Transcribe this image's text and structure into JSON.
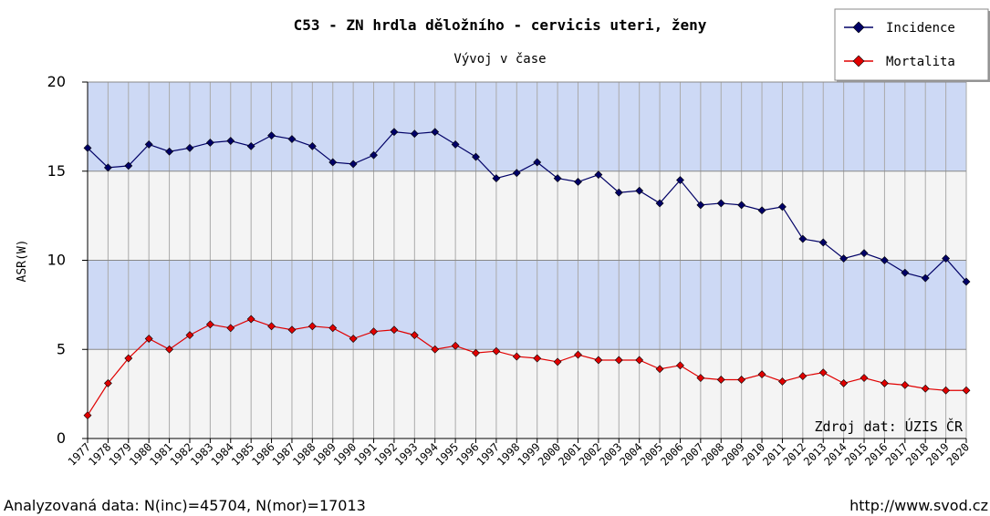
{
  "chart_data": {
    "type": "line",
    "title": "C53 - ZN hrdla děložního - cervicis uteri, ženy",
    "subtitle": "Vývoj v čase",
    "y_label": "ASR(W)",
    "source_note": "Zdroj dat: ÚZIS ČR",
    "footer_left": "Analyzovaná data: N(inc)=45704, N(mor)=17013",
    "footer_right": "http://www.svod.cz",
    "x": [
      1977,
      1978,
      1979,
      1980,
      1981,
      1982,
      1983,
      1984,
      1985,
      1986,
      1987,
      1988,
      1989,
      1990,
      1991,
      1992,
      1993,
      1994,
      1995,
      1996,
      1997,
      1998,
      1999,
      2000,
      2001,
      2002,
      2003,
      2004,
      2005,
      2006,
      2007,
      2008,
      2009,
      2010,
      2011,
      2012,
      2013,
      2014,
      2015,
      2016,
      2017,
      2018,
      2019,
      2020
    ],
    "xlim": [
      1977,
      2020
    ],
    "series": [
      {
        "name": "Incidence",
        "color": "#000066",
        "values": [
          16.3,
          15.2,
          15.3,
          16.5,
          16.1,
          16.3,
          16.6,
          16.7,
          16.4,
          17.0,
          16.8,
          16.4,
          15.5,
          15.4,
          15.9,
          17.2,
          17.1,
          17.2,
          16.5,
          15.8,
          14.6,
          14.9,
          15.5,
          14.6,
          14.4,
          14.8,
          13.8,
          13.9,
          13.2,
          14.5,
          13.1,
          13.2,
          13.1,
          12.8,
          13.0,
          11.2,
          11.0,
          10.1,
          10.4,
          10.0,
          9.3,
          9.0,
          10.1,
          8.8
        ]
      },
      {
        "name": "Mortalita",
        "color": "#e00000",
        "values": [
          1.3,
          3.1,
          4.5,
          5.6,
          5.0,
          5.8,
          6.4,
          6.2,
          6.7,
          6.3,
          6.1,
          6.3,
          6.2,
          5.6,
          6.0,
          6.1,
          5.8,
          5.0,
          5.2,
          4.8,
          4.9,
          4.6,
          4.5,
          4.3,
          4.7,
          4.4,
          4.4,
          4.4,
          3.9,
          4.1,
          3.4,
          3.3,
          3.3,
          3.6,
          3.2,
          3.5,
          3.7,
          3.1,
          3.4,
          3.1,
          3.0,
          2.8,
          2.7,
          2.7
        ]
      }
    ],
    "ylim": [
      0,
      20
    ],
    "yticks": [
      0,
      5,
      10,
      15,
      20
    ],
    "band_colors": [
      "#f4f4f4",
      "#cdd9f5"
    ],
    "grid": true,
    "legend": "top-right"
  }
}
